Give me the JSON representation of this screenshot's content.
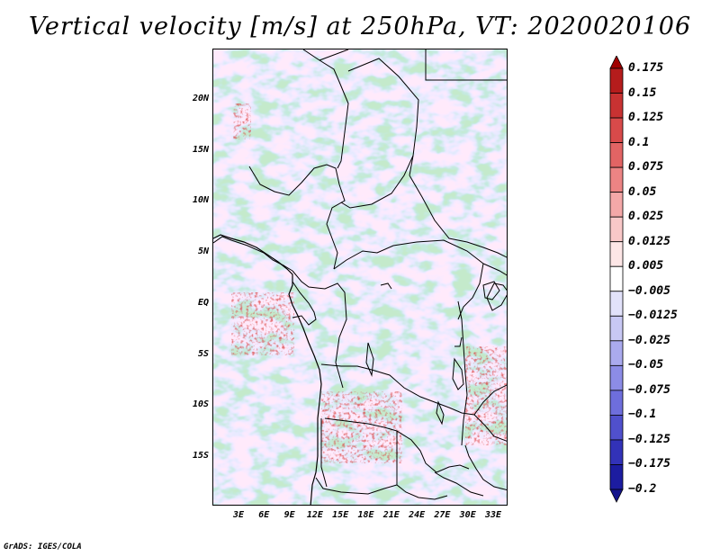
{
  "title": "Vertical velocity [m/s] at 250hPa, VT: 2020020106",
  "credit": "GrADS: IGES/COLA",
  "map": {
    "variable": "Vertical velocity",
    "units": "m/s",
    "level": "250hPa",
    "valid_time": "2020020106",
    "lat_ticks": [
      "20N",
      "15N",
      "10N",
      "5N",
      "EQ",
      "5S",
      "10S",
      "15S"
    ],
    "lon_ticks": [
      "3E",
      "6E",
      "9E",
      "12E",
      "15E",
      "18E",
      "21E",
      "24E",
      "27E",
      "30E",
      "33E"
    ]
  },
  "colorbar": {
    "labels": [
      "0.175",
      "0.15",
      "0.125",
      "0.1",
      "0.075",
      "0.05",
      "0.025",
      "0.0125",
      "0.005",
      "−0.005",
      "−0.0125",
      "−0.025",
      "−0.05",
      "−0.075",
      "−0.1",
      "−0.125",
      "−0.175",
      "−0.2"
    ],
    "colors": [
      "#a00000",
      "#b51c1c",
      "#c83232",
      "#d84a4a",
      "#e26464",
      "#ec8484",
      "#f4a8a8",
      "#f9c8c8",
      "#fde6e6",
      "#ffffff",
      "#e2e2fa",
      "#c8c8f4",
      "#aaaaee",
      "#8c8ce6",
      "#6e6edc",
      "#5050cc",
      "#3232b8",
      "#1c1ca0",
      "#14148c"
    ]
  }
}
